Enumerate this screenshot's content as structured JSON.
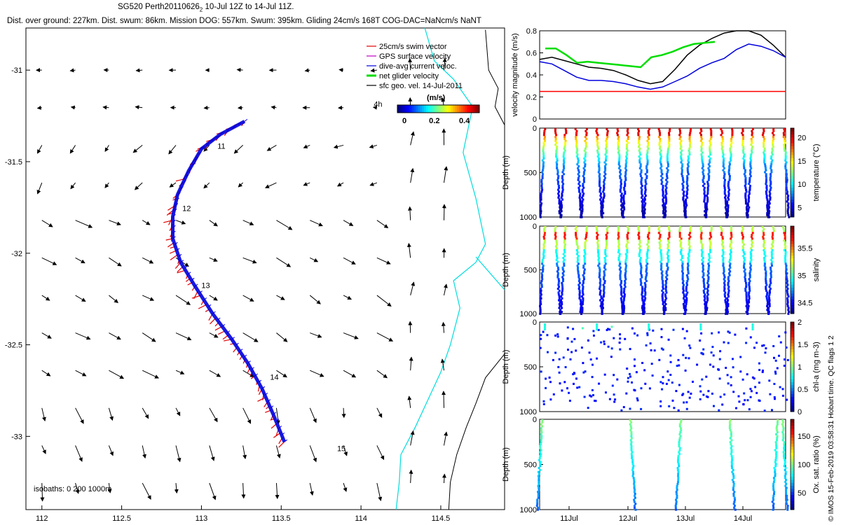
{
  "header": {
    "title_prefix": "SG520 Perth20110626",
    "title_sub": "2",
    "title_suffix": " 10-Jul 12Z to 14-Jul 11Z.",
    "summary": "Dist. over ground: 227km. Dist. swum: 86km. Mission DOG: 557km. Swum: 395km. Gliding 24cm/s 168T COG-DAC=NaNcm/s NaNT"
  },
  "side_label": "© IMOS 15-Feb-2019 03:58:31 Hobart time. QC flags 1  2",
  "colors": {
    "swim": "#e00000",
    "gps": "#c000c0",
    "dac": "#0000dd",
    "net": "#00dd00",
    "sfc": "#000000",
    "coast": "#00dddd"
  },
  "chart_data": [
    {
      "type": "map",
      "xlim": [
        111.9,
        114.9
      ],
      "ylim": [
        -33.4,
        -30.77
      ],
      "x_ticks": [
        112,
        112.5,
        113,
        113.5,
        114,
        114.5
      ],
      "x_tick_labels": [
        "112",
        "112.5",
        "113",
        "113.5",
        "114",
        "114.5"
      ],
      "y_ticks": [
        -31,
        -31.5,
        -32,
        -32.5,
        -33
      ],
      "y_tick_labels": [
        "-31",
        "-31.5",
        "-32",
        "-32.5",
        "-33"
      ],
      "legend": {
        "position": "top-right",
        "entries": [
          "25cm/s swim vector",
          "GPS surface velocity",
          "dive-avg current veloc.",
          "net glider velocity",
          "sfc geo. vel. 14-Jul-2011"
        ]
      },
      "colorbar": {
        "title": "(m/s)",
        "ticks": [
          0,
          0.2,
          0.4
        ],
        "tick_labels": [
          "0",
          "0.2",
          "0.4"
        ]
      },
      "track": [
        [
          113.27,
          -31.28
        ],
        [
          113.12,
          -31.35
        ],
        [
          113.0,
          -31.43
        ],
        [
          112.92,
          -31.55
        ],
        [
          112.85,
          -31.68
        ],
        [
          112.82,
          -31.8
        ],
        [
          112.82,
          -31.92
        ],
        [
          112.87,
          -32.05
        ],
        [
          112.96,
          -32.18
        ],
        [
          113.07,
          -32.33
        ],
        [
          113.19,
          -32.47
        ],
        [
          113.29,
          -32.6
        ],
        [
          113.38,
          -32.74
        ],
        [
          113.45,
          -32.88
        ],
        [
          113.52,
          -33.03
        ]
      ],
      "day_labels": [
        {
          "text": "11",
          "lon": 113.1,
          "lat": -31.43
        },
        {
          "text": "12",
          "lon": 112.88,
          "lat": -31.77
        },
        {
          "text": "13",
          "lon": 113.0,
          "lat": -32.19
        },
        {
          "text": "14",
          "lon": 113.43,
          "lat": -32.69
        },
        {
          "text": "15",
          "lon": 113.85,
          "lat": -33.08
        }
      ],
      "time_label": {
        "text": "4h",
        "lon": 114.08,
        "lat": -31.2
      },
      "isobaths_label": "isobaths: 0   200   1000m"
    },
    {
      "type": "line",
      "ylabel": "velocity magnitude (m/s)",
      "ylim": [
        0,
        0.8
      ],
      "y_ticks": [
        0,
        0.2,
        0.4,
        0.6,
        0.8
      ],
      "y_tick_labels": [
        "0",
        "0.2",
        "0.4",
        "0.6",
        "0.8"
      ],
      "series": [
        {
          "color": "#000000",
          "values": [
            0.54,
            0.56,
            0.53,
            0.5,
            0.47,
            0.46,
            0.44,
            0.4,
            0.35,
            0.32,
            0.34,
            0.45,
            0.58,
            0.67,
            0.73,
            0.78,
            0.8,
            0.8,
            0.76,
            0.67,
            0.56
          ]
        },
        {
          "color": "#0000dd",
          "values": [
            0.52,
            0.5,
            0.44,
            0.38,
            0.35,
            0.35,
            0.34,
            0.32,
            0.29,
            0.27,
            0.29,
            0.34,
            0.39,
            0.46,
            0.51,
            0.55,
            0.63,
            0.68,
            0.66,
            0.62,
            0.56
          ]
        },
        {
          "color": "#00dd00",
          "values": [
            0.64,
            0.64,
            0.58,
            0.51,
            0.52,
            0.51,
            0.5,
            0.49,
            0.48,
            0.47,
            0.56,
            0.58,
            0.61,
            0.65,
            0.68,
            0.69,
            0.7
          ]
        },
        {
          "color": "#ff0000",
          "values": [
            0.25,
            0.25
          ]
        }
      ]
    },
    {
      "type": "scatter",
      "ylabel": "Depth (m)",
      "colorbar_label": "temperature (°C)",
      "y_ticks": [
        0,
        500,
        1000
      ],
      "y_tick_labels": [
        "0",
        "500",
        "1000"
      ],
      "colorbar_ticks": [
        5,
        10,
        15,
        20
      ],
      "colorbar_tick_labels": [
        "5",
        "10",
        "15",
        "20"
      ],
      "colorbar_range": [
        3,
        22
      ]
    },
    {
      "type": "scatter",
      "ylabel": "Depth (m)",
      "colorbar_label": "salinity",
      "y_ticks": [
        0,
        500,
        1000
      ],
      "y_tick_labels": [
        "0",
        "500",
        "1000"
      ],
      "colorbar_ticks": [
        34.5,
        35,
        35.5
      ],
      "colorbar_tick_labels": [
        "34.5",
        "35",
        "35.5"
      ],
      "colorbar_range": [
        34.3,
        35.9
      ]
    },
    {
      "type": "scatter",
      "ylabel": "Depth (m)",
      "colorbar_label": "chl-a (mg m-3)",
      "y_ticks": [
        0,
        500,
        1000
      ],
      "y_tick_labels": [
        "0",
        "500",
        "1000"
      ],
      "colorbar_ticks": [
        0,
        0.5,
        1,
        1.5,
        2
      ],
      "colorbar_tick_labels": [
        "0",
        "0.5",
        "1",
        "1.5",
        "2"
      ],
      "colorbar_range": [
        0,
        2
      ]
    },
    {
      "type": "scatter",
      "ylabel": "Depth (m)",
      "colorbar_label": "Ox. sat. ratio (%)",
      "y_ticks": [
        0,
        500,
        1000
      ],
      "y_tick_labels": [
        "0",
        "500",
        "1000"
      ],
      "colorbar_ticks": [
        50,
        100,
        150
      ],
      "colorbar_tick_labels": [
        "50",
        "100",
        "150"
      ],
      "colorbar_range": [
        20,
        180
      ],
      "x_ticks": [
        "11Jul",
        "12Jul",
        "13Jul",
        "14Jul"
      ]
    }
  ]
}
